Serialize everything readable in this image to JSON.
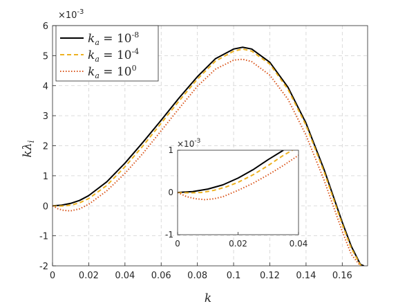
{
  "chart_data": [
    {
      "type": "line",
      "xlabel": "k",
      "ylabel": "kλ",
      "ylabel_subscript": "i",
      "y_exponent_label": "×10",
      "y_exponent_power": "-3",
      "xlim": [
        0,
        0.174
      ],
      "ylim": [
        -2,
        6
      ],
      "xticks": [
        0,
        0.02,
        0.04,
        0.06,
        0.08,
        0.1,
        0.12,
        0.14,
        0.16
      ],
      "xtick_labels": [
        "0",
        "0.02",
        "0.04",
        "0.06",
        "0.08",
        "0.1",
        "0.12",
        "0.14",
        "0.16"
      ],
      "yticks": [
        -2,
        -1,
        0,
        1,
        2,
        3,
        4,
        5,
        6
      ],
      "ytick_labels": [
        "-2",
        "-1",
        "0",
        "1",
        "2",
        "3",
        "4",
        "5",
        "6"
      ],
      "grid": true,
      "legend_position": "top-left",
      "series": [
        {
          "name": "k_a = 10^-8",
          "legend_base": "10",
          "legend_power": "-8",
          "color": "#000000",
          "style": "solid",
          "x": [
            0,
            0.005,
            0.01,
            0.015,
            0.02,
            0.03,
            0.04,
            0.05,
            0.06,
            0.07,
            0.08,
            0.09,
            0.1,
            0.105,
            0.11,
            0.12,
            0.13,
            0.14,
            0.15,
            0.16,
            0.165,
            0.17,
            0.172
          ],
          "y": [
            0,
            0.02,
            0.08,
            0.18,
            0.34,
            0.8,
            1.42,
            2.12,
            2.85,
            3.6,
            4.3,
            4.9,
            5.22,
            5.28,
            5.22,
            4.78,
            3.95,
            2.75,
            1.2,
            -0.55,
            -1.35,
            -1.95,
            -2.0
          ]
        },
        {
          "name": "k_a = 10^-4",
          "legend_base": "10",
          "legend_power": "-4",
          "color": "#EDB120",
          "style": "dashed",
          "x": [
            0,
            0.005,
            0.01,
            0.015,
            0.02,
            0.03,
            0.04,
            0.05,
            0.06,
            0.07,
            0.08,
            0.09,
            0.1,
            0.105,
            0.11,
            0.12,
            0.13,
            0.14,
            0.15,
            0.16,
            0.165,
            0.17,
            0.171
          ],
          "y": [
            0,
            -0.01,
            0.02,
            0.1,
            0.24,
            0.68,
            1.3,
            2.0,
            2.75,
            3.5,
            4.22,
            4.82,
            5.15,
            5.22,
            5.15,
            4.72,
            3.88,
            2.68,
            1.12,
            -0.62,
            -1.42,
            -1.97,
            -2.0
          ]
        },
        {
          "name": "k_a = 10^0",
          "legend_base": "10",
          "legend_power": "0",
          "color": "#D95319",
          "style": "dotted",
          "x": [
            0,
            0.003,
            0.006,
            0.01,
            0.015,
            0.02,
            0.03,
            0.04,
            0.05,
            0.06,
            0.07,
            0.08,
            0.09,
            0.1,
            0.105,
            0.11,
            0.12,
            0.13,
            0.14,
            0.15,
            0.16,
            0.165,
            0.17
          ],
          "y": [
            0,
            -0.1,
            -0.15,
            -0.17,
            -0.1,
            0.05,
            0.5,
            1.08,
            1.75,
            2.5,
            3.25,
            3.98,
            4.55,
            4.85,
            4.88,
            4.8,
            4.35,
            3.55,
            2.35,
            0.85,
            -0.85,
            -1.62,
            -2.0
          ]
        }
      ]
    },
    {
      "type": "line",
      "role": "inset",
      "y_exponent_label": "×10",
      "y_exponent_power": "-3",
      "xlim": [
        0,
        0.04
      ],
      "ylim": [
        -1,
        1
      ],
      "xticks": [
        0,
        0.02,
        0.04
      ],
      "xtick_labels": [
        "0",
        "0.02",
        "0.04"
      ],
      "yticks": [
        -1,
        0,
        1
      ],
      "ytick_labels": [
        "-1",
        "0",
        "1"
      ],
      "grid": false,
      "series": [
        {
          "name": "k_a = 10^-8",
          "color": "#000000",
          "style": "solid",
          "x": [
            0,
            0.005,
            0.01,
            0.015,
            0.02,
            0.025,
            0.03,
            0.035
          ],
          "y": [
            0,
            0.02,
            0.08,
            0.18,
            0.34,
            0.54,
            0.78,
            1.0
          ]
        },
        {
          "name": "k_a = 10^-4",
          "color": "#EDB120",
          "style": "dashed",
          "x": [
            0,
            0.004,
            0.008,
            0.012,
            0.016,
            0.02,
            0.025,
            0.03,
            0.035,
            0.038
          ],
          "y": [
            0,
            -0.01,
            0.0,
            0.05,
            0.13,
            0.24,
            0.42,
            0.64,
            0.88,
            1.0
          ]
        },
        {
          "name": "k_a = 10^0",
          "color": "#D95319",
          "style": "dotted",
          "x": [
            0,
            0.003,
            0.006,
            0.009,
            0.012,
            0.015,
            0.02,
            0.025,
            0.03,
            0.035,
            0.04
          ],
          "y": [
            0,
            -0.1,
            -0.15,
            -0.17,
            -0.15,
            -0.1,
            0.05,
            0.22,
            0.42,
            0.64,
            0.88
          ]
        }
      ]
    }
  ]
}
